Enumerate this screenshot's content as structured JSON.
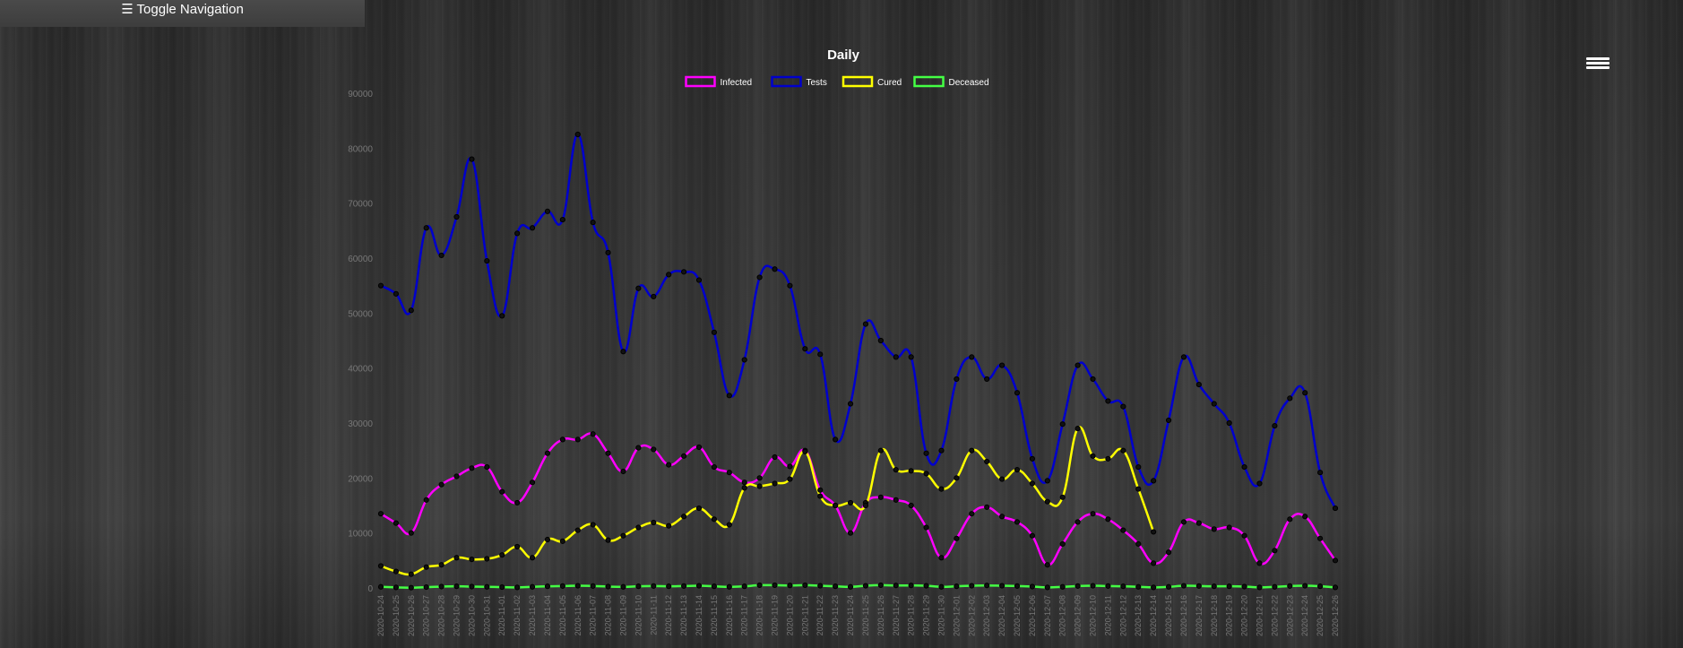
{
  "nav": {
    "toggle_label": "☰ Toggle Navigation"
  },
  "menu": {
    "icon": "hamburger-menu-icon"
  },
  "chart_data": {
    "type": "line",
    "title": "Daily",
    "legend_position": "top-center",
    "grid": false,
    "ylim": [
      0,
      90000
    ],
    "yticks": [
      0,
      10000,
      20000,
      30000,
      40000,
      50000,
      60000,
      70000,
      80000,
      90000
    ],
    "xlabels": [
      "2020-10-24",
      "2020-10-25",
      "2020-10-26",
      "2020-10-27",
      "2020-10-28",
      "2020-10-29",
      "2020-10-30",
      "2020-10-31",
      "2020-11-01",
      "2020-11-02",
      "2020-11-03",
      "2020-11-04",
      "2020-11-05",
      "2020-11-06",
      "2020-11-07",
      "2020-11-08",
      "2020-11-09",
      "2020-11-10",
      "2020-11-11",
      "2020-11-12",
      "2020-11-13",
      "2020-11-14",
      "2020-11-15",
      "2020-11-16",
      "2020-11-17",
      "2020-11-18",
      "2020-11-19",
      "2020-11-20",
      "2020-11-21",
      "2020-11-22",
      "2020-11-23",
      "2020-11-24",
      "2020-11-25",
      "2020-11-26",
      "2020-11-27",
      "2020-11-28",
      "2020-11-29",
      "2020-11-30",
      "2020-12-01",
      "2020-12-02",
      "2020-12-03",
      "2020-12-04",
      "2020-12-05",
      "2020-12-06",
      "2020-12-07",
      "2020-12-08",
      "2020-12-09",
      "2020-12-10",
      "2020-12-11",
      "2020-12-12",
      "2020-12-13",
      "2020-12-14",
      "2020-12-15",
      "2020-12-16",
      "2020-12-17",
      "2020-12-18",
      "2020-12-19",
      "2020-12-20",
      "2020-12-21",
      "2020-12-22",
      "2020-12-23",
      "2020-12-24",
      "2020-12-25",
      "2020-12-26"
    ],
    "series": [
      {
        "name": "Infected",
        "color": "#ff00ff",
        "values": [
          13500,
          11800,
          10000,
          16000,
          18800,
          20300,
          21800,
          22000,
          17500,
          15500,
          19200,
          24500,
          27000,
          27000,
          28000,
          24500,
          21200,
          25500,
          25200,
          22400,
          24000,
          25600,
          22000,
          21000,
          19200,
          20000,
          23800,
          22100,
          25000,
          17800,
          15000,
          10000,
          15500,
          16500,
          16000,
          15000,
          11000,
          5500,
          9000,
          13500,
          14700,
          13000,
          12000,
          9500,
          4200,
          8000,
          12000,
          13500,
          12500,
          10500,
          8000,
          4500,
          6500,
          12000,
          11800,
          10700,
          11000,
          9500,
          4500,
          6800,
          12500,
          13000,
          9000,
          5000
        ]
      },
      {
        "name": "Tests",
        "color": "#0000cc",
        "values": [
          55000,
          53500,
          50500,
          65500,
          60500,
          67500,
          78000,
          59500,
          49500,
          64500,
          65500,
          68500,
          67000,
          82500,
          66500,
          61000,
          43000,
          54500,
          53000,
          57000,
          57500,
          56000,
          46500,
          35000,
          41500,
          56500,
          58000,
          55000,
          43500,
          42500,
          27000,
          33500,
          48000,
          45000,
          42000,
          42000,
          24500,
          25000,
          38000,
          42000,
          38000,
          40500,
          35500,
          23500,
          19500,
          29800,
          40500,
          38000,
          34000,
          33000,
          22000,
          19500,
          30500,
          42000,
          37000,
          33500,
          30000,
          22000,
          19000,
          29500,
          34500,
          35500,
          21000,
          14500
        ]
      },
      {
        "name": "Cured",
        "color": "#ffff00",
        "values": [
          4000,
          3000,
          2500,
          3800,
          4200,
          5500,
          5200,
          5300,
          6000,
          7500,
          5500,
          8800,
          8500,
          10500,
          11500,
          8700,
          9500,
          11000,
          11900,
          11300,
          13000,
          14500,
          12500,
          11500,
          18200,
          18500,
          19000,
          19800,
          24800,
          16700,
          15000,
          15500,
          15000,
          25000,
          21500,
          21300,
          20800,
          18000,
          20000,
          25000,
          23000,
          19800,
          21500,
          19000,
          15700,
          16500,
          29000,
          24000,
          23500,
          25000,
          18000,
          10200,
          null,
          null,
          null,
          null,
          null,
          null,
          null,
          null,
          null,
          null,
          null,
          null
        ]
      },
      {
        "name": "Deceased",
        "color": "#44ff44",
        "values": [
          200,
          100,
          50,
          150,
          250,
          300,
          250,
          200,
          150,
          100,
          200,
          300,
          350,
          400,
          350,
          250,
          200,
          300,
          350,
          300,
          350,
          400,
          300,
          200,
          300,
          500,
          500,
          450,
          500,
          400,
          300,
          200,
          400,
          500,
          450,
          450,
          400,
          200,
          300,
          400,
          450,
          400,
          350,
          250,
          100,
          200,
          350,
          400,
          350,
          300,
          200,
          100,
          200,
          400,
          350,
          300,
          300,
          250,
          100,
          200,
          350,
          400,
          300,
          100
        ]
      }
    ]
  }
}
